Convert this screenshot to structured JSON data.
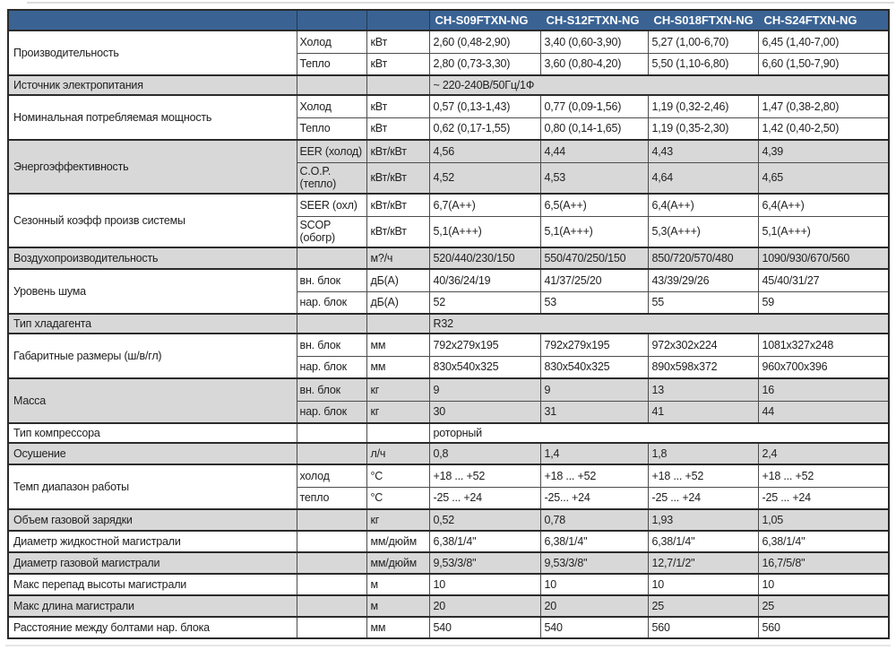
{
  "table": {
    "models": [
      "CH-S09FTXN-NG",
      "CH-S12FTXN-NG",
      "CH-S018FTXN-NG",
      "CH-S24FTXN-NG"
    ],
    "groups": [
      {
        "label": "Производительность",
        "shade": "white",
        "rows": [
          {
            "sub": "Холод",
            "unit": "кВт",
            "values": [
              "2,60 (0,48-2,90)",
              "3,40 (0,60-3,90)",
              "5,27 (1,00-6,70)",
              "6,45 (1,40-7,00)"
            ]
          },
          {
            "sub": "Тепло",
            "unit": "кВт",
            "values": [
              "2,80 (0,73-3,30)",
              "3,60 (0,80-4,20)",
              "5,50 (1,10-6,80)",
              "6,60 (1,50-7,90)"
            ]
          }
        ]
      },
      {
        "label": "Источник электропитания",
        "shade": "gray",
        "rows": [
          {
            "sub": "",
            "unit": "",
            "span": "~ 220-240В/50Гц/1Ф"
          }
        ]
      },
      {
        "label": "Номинальная потребляемая мощность",
        "shade": "white",
        "rows": [
          {
            "sub": "Холод",
            "unit": "кВт",
            "values": [
              "0,57 (0,13-1,43)",
              "0,77 (0,09-1,56)",
              "1,19 (0,32-2,46)",
              "1,47 (0,38-2,80)"
            ]
          },
          {
            "sub": "Тепло",
            "unit": "кВт",
            "values": [
              "0,62 (0,17-1,55)",
              "0,80 (0,14-1,65)",
              "1,19 (0,35-2,30)",
              "1,42 (0,40-2,50)"
            ]
          }
        ]
      },
      {
        "label": "Энергоэффективность",
        "shade": "gray",
        "rows": [
          {
            "sub": "EER (холод)",
            "unit": "кВт/кВт",
            "values": [
              "4,56",
              "4,44",
              "4,43",
              "4,39"
            ]
          },
          {
            "sub": "C.O.P. (тепло)",
            "unit": "кВт/кВт",
            "tall": true,
            "values": [
              "4,52",
              "4,53",
              "4,64",
              "4,65"
            ]
          }
        ]
      },
      {
        "label": "Сезонный коэфф произв системы",
        "shade": "white",
        "rows": [
          {
            "sub": "SEER (охл)",
            "unit": "кВт/кВт",
            "values": [
              "6,7(A++)",
              "6,5(A++)",
              "6,4(A++)",
              "6,4(A++)"
            ]
          },
          {
            "sub": "SCOP (обогр)",
            "unit": "кВт/кВт",
            "tall": true,
            "values": [
              "5,1(A+++)",
              "5,1(A+++)",
              "5,3(A+++)",
              "5,1(A+++)"
            ]
          }
        ]
      },
      {
        "label": "Воздухопроизводительность",
        "shade": "gray",
        "rows": [
          {
            "sub": "",
            "unit": "м?/ч",
            "values": [
              "520/440/230/150",
              "550/470/250/150",
              "850/720/570/480",
              "1090/930/670/560"
            ]
          }
        ]
      },
      {
        "label": "Уровень шума",
        "shade": "white",
        "rows": [
          {
            "sub": "вн. блок",
            "unit": "дБ(А)",
            "values": [
              "40/36/24/19",
              "41/37/25/20",
              "43/39/29/26",
              "45/40/31/27"
            ]
          },
          {
            "sub": "нар. блок",
            "unit": "дБ(А)",
            "values": [
              "52",
              "53",
              "55",
              "59"
            ]
          }
        ]
      },
      {
        "label": "Тип хладагента",
        "shade": "gray",
        "rows": [
          {
            "sub": "",
            "unit": "",
            "span": "R32"
          }
        ]
      },
      {
        "label": "Габаритные размеры (ш/в/гл)",
        "shade": "white",
        "rows": [
          {
            "sub": "вн. блок",
            "unit": "мм",
            "values": [
              "792х279х195",
              "792х279х195",
              "972х302х224",
              "1081х327х248"
            ]
          },
          {
            "sub": "нар. блок",
            "unit": "мм",
            "values": [
              "830х540х325",
              "830х540х325",
              "890х598х372",
              "960х700х396"
            ]
          }
        ]
      },
      {
        "label": "Масса",
        "shade": "gray",
        "rows": [
          {
            "sub": "вн. блок",
            "unit": "кг",
            "values": [
              "9",
              "9",
              "13",
              "16"
            ]
          },
          {
            "sub": "нар. блок",
            "unit": "кг",
            "values": [
              "30",
              "31",
              "41",
              "44"
            ]
          }
        ]
      },
      {
        "label": "Тип компрессора",
        "shade": "white",
        "rows": [
          {
            "sub": "",
            "unit": "",
            "span": "роторный"
          }
        ]
      },
      {
        "label": "Осушение",
        "shade": "gray",
        "rows": [
          {
            "sub": "",
            "unit": "л/ч",
            "values": [
              "0,8",
              "1,4",
              "1,8",
              "2,4"
            ]
          }
        ]
      },
      {
        "label": "Темп диапазон работы",
        "shade": "white",
        "rows": [
          {
            "sub": "холод",
            "unit": "°C",
            "values": [
              "+18 ... +52",
              "+18 ... +52",
              "+18 ... +52",
              "+18 ... +52"
            ]
          },
          {
            "sub": "тепло",
            "unit": "°C",
            "values": [
              "-25 ... +24",
              "-25... +24",
              "-25 ... +24",
              "-25 ... +24"
            ]
          }
        ]
      },
      {
        "label": "Объем газовой зарядки",
        "shade": "gray",
        "rows": [
          {
            "sub": "",
            "unit": "кг",
            "values": [
              "0,52",
              "0,78",
              "1,93",
              "1,05"
            ]
          }
        ]
      },
      {
        "label": "Диаметр жидкостной магистрали",
        "shade": "white",
        "rows": [
          {
            "sub": "",
            "unit": "мм/дюйм",
            "values": [
              "6,38/1/4\"",
              "6,38/1/4\"",
              "6,38/1/4\"",
              "6,38/1/4\""
            ]
          }
        ]
      },
      {
        "label": "Диаметр газовой магистрали",
        "shade": "gray",
        "rows": [
          {
            "sub": "",
            "unit": "мм/дюйм",
            "values": [
              "9,53/3/8\"",
              "9,53/3/8\"",
              "12,7/1/2\"",
              "16,7/5/8\""
            ]
          }
        ]
      },
      {
        "label": "Макс перепад высоты магистрали",
        "shade": "white",
        "rows": [
          {
            "sub": "",
            "unit": "м",
            "values": [
              "10",
              "10",
              "10",
              "10"
            ]
          }
        ]
      },
      {
        "label": "Макс длина магистрали",
        "shade": "gray",
        "rows": [
          {
            "sub": "",
            "unit": "м",
            "values": [
              "20",
              "20",
              "25",
              "25"
            ]
          }
        ]
      },
      {
        "label": "Расстояние между болтами нар. блока",
        "shade": "white",
        "rows": [
          {
            "sub": "",
            "unit": "мм",
            "values": [
              "540",
              "540",
              "560",
              "560"
            ]
          }
        ]
      }
    ]
  },
  "colors": {
    "header_bg": "#3A6394",
    "header_text": "#FFFFFF",
    "row_gray": "#D8D8D8",
    "row_white": "#FFFFFF",
    "border": "#4D4D4D",
    "text": "#1F1F1F"
  }
}
